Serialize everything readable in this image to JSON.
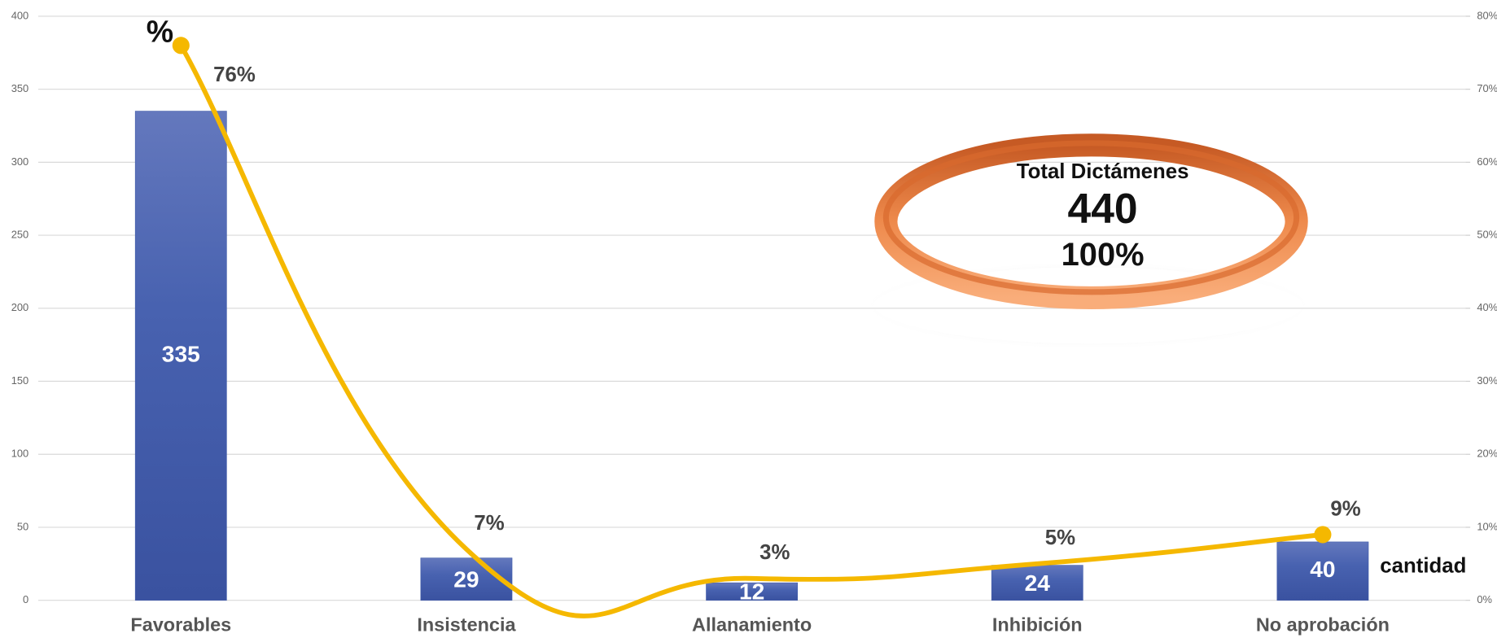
{
  "chart_data": {
    "type": "bar_line",
    "categories": [
      "Favorables",
      "Insistencia",
      "Allanamiento",
      "Inhibición",
      "No aprobación"
    ],
    "series": [
      {
        "name": "cantidad",
        "type": "bar",
        "color": "#3f5aa8",
        "values": [
          335,
          29,
          12,
          24,
          40
        ]
      },
      {
        "name": "%",
        "type": "line",
        "axis": "y2",
        "color": "#f5b800",
        "values": [
          76,
          7,
          3,
          5,
          9
        ],
        "value_labels": [
          "76%",
          "7%",
          "3%",
          "5%",
          "9%"
        ]
      }
    ],
    "ylim": [
      0,
      400
    ],
    "yticks": [
      0,
      50,
      100,
      150,
      200,
      250,
      300,
      350,
      400
    ],
    "y2lim": [
      0,
      80
    ],
    "y2ticks": [
      {
        "value": 0,
        "label": "0%"
      },
      {
        "value": 10,
        "label": "10%"
      },
      {
        "value": 20,
        "label": "20%"
      },
      {
        "value": 30,
        "label": "30%"
      },
      {
        "value": 40,
        "label": "40%"
      },
      {
        "value": 50,
        "label": "50%"
      },
      {
        "value": 60,
        "label": "60%"
      },
      {
        "value": 70,
        "label": "70%"
      },
      {
        "value": 80,
        "label": "80%"
      }
    ],
    "grid": true,
    "annotation": {
      "title": "Total Dictámenes",
      "value": 440,
      "share": {
        "value": 100,
        "label": "100%"
      }
    }
  }
}
